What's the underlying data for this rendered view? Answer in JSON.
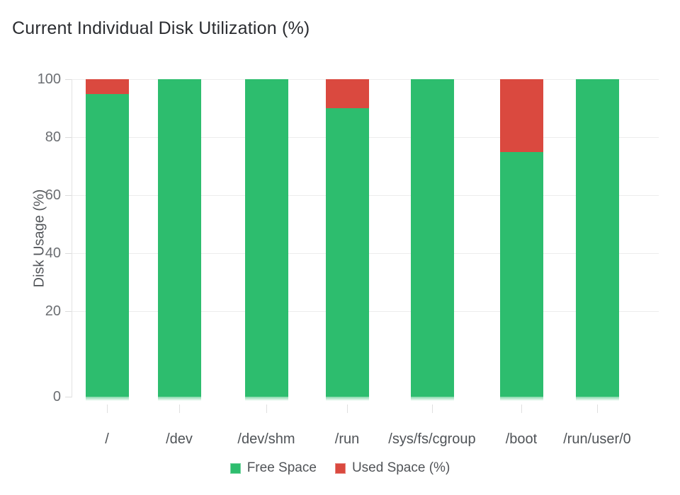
{
  "title": "Current Individual Disk Utilization (%)",
  "chart_data": {
    "type": "bar",
    "stacked": true,
    "title": "Current Individual Disk Utilization (%)",
    "xlabel": "",
    "ylabel": "Disk Usage (%)",
    "ylim": [
      0,
      100
    ],
    "yticks": [
      100,
      80,
      60,
      40,
      20,
      0
    ],
    "grid": true,
    "legend_position": "bottom",
    "categories": [
      "/",
      "/dev",
      "/dev/shm",
      "/run",
      "/sys/fs/cgroup",
      "/boot",
      "/run/user/0"
    ],
    "series": [
      {
        "name": "Free Space",
        "color": "#2dbd6e",
        "values": [
          95,
          100,
          100,
          90,
          100,
          75,
          100
        ]
      },
      {
        "name": "Used Space (%)",
        "color": "#da493f",
        "values": [
          5,
          0,
          0,
          10,
          0,
          25,
          0
        ]
      }
    ]
  }
}
